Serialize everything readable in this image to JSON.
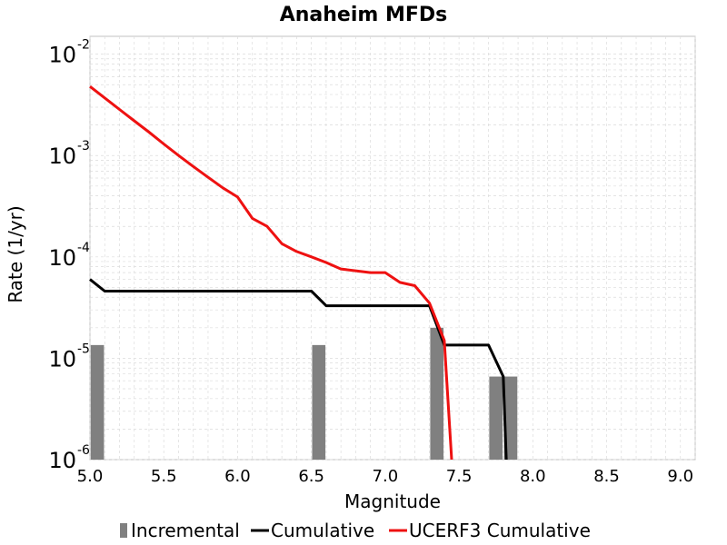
{
  "chart_data": {
    "type": "line",
    "title": "Anaheim MFDs",
    "xlabel": "Magnitude",
    "ylabel": "Rate (1/yr)",
    "xlim": [
      5.0,
      9.1
    ],
    "ylim": [
      1e-06,
      0.015
    ],
    "yscale": "log",
    "grid": true,
    "legend_position": "bottom",
    "x_ticks": [
      "5.0",
      "5.5",
      "6.0",
      "6.5",
      "7.0",
      "7.5",
      "8.0",
      "8.5",
      "9.0"
    ],
    "y_ticks": [
      {
        "base": "10",
        "exp": "-6",
        "value": 1e-06
      },
      {
        "base": "10",
        "exp": "-5",
        "value": 1e-05
      },
      {
        "base": "10",
        "exp": "-4",
        "value": 0.0001
      },
      {
        "base": "10",
        "exp": "-3",
        "value": 0.001
      },
      {
        "base": "10",
        "exp": "-2",
        "value": 0.01
      }
    ],
    "series": [
      {
        "name": "Incremental",
        "kind": "bar",
        "color": "#808080",
        "points": [
          {
            "x": 5.05,
            "y": 1.35e-05
          },
          {
            "x": 6.55,
            "y": 1.35e-05
          },
          {
            "x": 7.35,
            "y": 2e-05
          },
          {
            "x": 7.75,
            "y": 6.6e-06
          },
          {
            "x": 7.85,
            "y": 6.6e-06
          }
        ]
      },
      {
        "name": "Cumulative",
        "kind": "line",
        "color": "#000000",
        "points": [
          {
            "x": 5.0,
            "y": 6e-05
          },
          {
            "x": 5.1,
            "y": 4.6e-05
          },
          {
            "x": 6.5,
            "y": 4.6e-05
          },
          {
            "x": 6.6,
            "y": 3.3e-05
          },
          {
            "x": 7.3,
            "y": 3.3e-05
          },
          {
            "x": 7.4,
            "y": 1.35e-05
          },
          {
            "x": 7.7,
            "y": 1.35e-05
          },
          {
            "x": 7.8,
            "y": 6.6e-06
          },
          {
            "x": 7.82,
            "y": 1e-06
          }
        ]
      },
      {
        "name": "UCERF3 Cumulative",
        "kind": "line",
        "color": "#ee1111",
        "points": [
          {
            "x": 5.0,
            "y": 0.0048
          },
          {
            "x": 5.1,
            "y": 0.0037
          },
          {
            "x": 5.2,
            "y": 0.00285
          },
          {
            "x": 5.3,
            "y": 0.0022
          },
          {
            "x": 5.4,
            "y": 0.0017
          },
          {
            "x": 5.5,
            "y": 0.0013
          },
          {
            "x": 5.6,
            "y": 0.001
          },
          {
            "x": 5.7,
            "y": 0.00078
          },
          {
            "x": 5.8,
            "y": 0.00061
          },
          {
            "x": 5.9,
            "y": 0.00048
          },
          {
            "x": 6.0,
            "y": 0.00039
          },
          {
            "x": 6.1,
            "y": 0.00024
          },
          {
            "x": 6.2,
            "y": 0.0002
          },
          {
            "x": 6.3,
            "y": 0.000135
          },
          {
            "x": 6.4,
            "y": 0.000113
          },
          {
            "x": 6.5,
            "y": 0.0001
          },
          {
            "x": 6.6,
            "y": 8.8e-05
          },
          {
            "x": 6.7,
            "y": 7.6e-05
          },
          {
            "x": 6.8,
            "y": 7.3e-05
          },
          {
            "x": 6.9,
            "y": 7e-05
          },
          {
            "x": 7.0,
            "y": 7e-05
          },
          {
            "x": 7.1,
            "y": 5.6e-05
          },
          {
            "x": 7.2,
            "y": 5.2e-05
          },
          {
            "x": 7.3,
            "y": 3.5e-05
          },
          {
            "x": 7.4,
            "y": 1.5e-05
          },
          {
            "x": 7.45,
            "y": 1e-06
          }
        ]
      }
    ]
  }
}
